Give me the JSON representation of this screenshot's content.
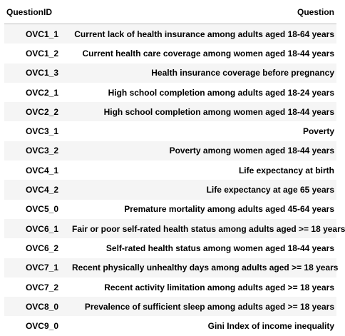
{
  "table": {
    "columns": [
      "QuestionID",
      "Question"
    ],
    "rows": [
      [
        "OVC1_1",
        "Current lack of health insurance among adults aged 18-64 years"
      ],
      [
        "OVC1_2",
        "Current health care coverage among women aged 18-44 years"
      ],
      [
        "OVC1_3",
        "Health insurance coverage before pregnancy"
      ],
      [
        "OVC2_1",
        "High school completion among adults aged 18-24 years"
      ],
      [
        "OVC2_2",
        "High school completion among women aged 18-44 years"
      ],
      [
        "OVC3_1",
        "Poverty"
      ],
      [
        "OVC3_2",
        "Poverty among women aged 18-44 years"
      ],
      [
        "OVC4_1",
        "Life expectancy at birth"
      ],
      [
        "OVC4_2",
        "Life expectancy at age 65 years"
      ],
      [
        "OVC5_0",
        "Premature mortality among adults aged 45-64 years"
      ],
      [
        "OVC6_1",
        "Fair or poor self-rated health status among adults aged >= 18 years"
      ],
      [
        "OVC6_2",
        "Self-rated health status among women aged 18-44 years"
      ],
      [
        "OVC7_1",
        "Recent physically unhealthy days among adults aged >= 18 years"
      ],
      [
        "OVC7_2",
        "Recent activity limitation among adults aged >= 18 years"
      ],
      [
        "OVC8_0",
        "Prevalence of sufficient sleep among adults aged >= 18 years"
      ],
      [
        "OVC9_0",
        "Gini Index of income inequality"
      ]
    ],
    "stripe_color": "#f5f5f5",
    "header_rule_color": "#bdbdbd"
  }
}
